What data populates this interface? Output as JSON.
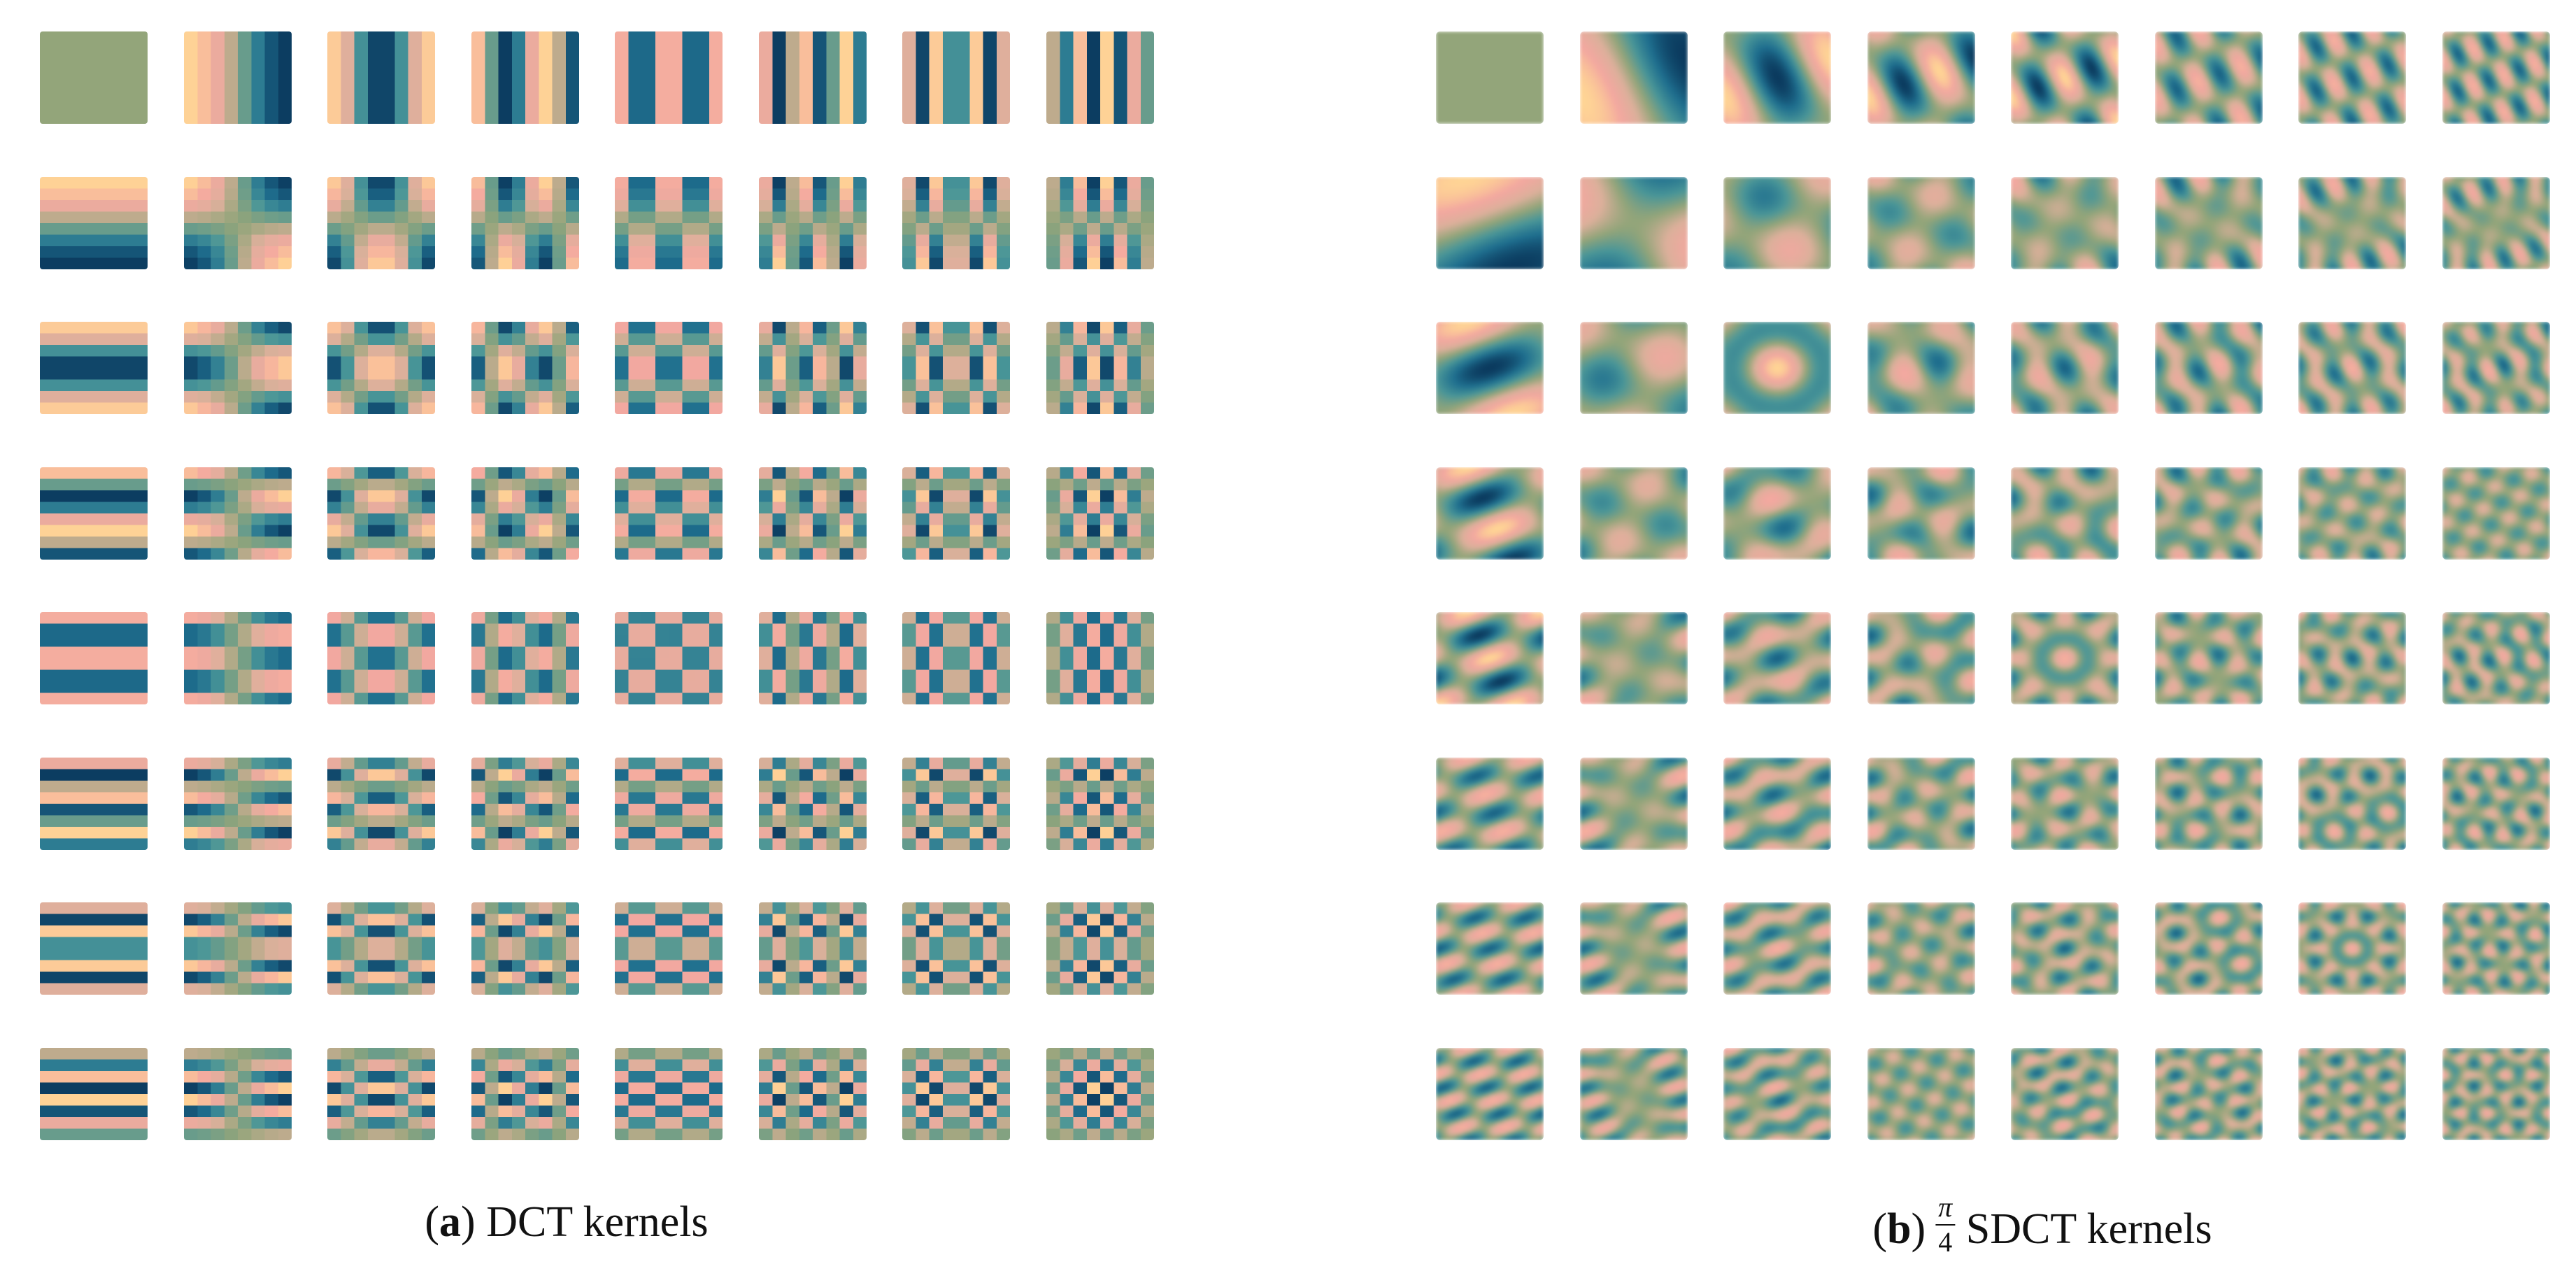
{
  "palette": {
    "neg_strong": "#0b3a5e",
    "neg_mid": "#1f6f8f",
    "neutral_blue": "#4a9698",
    "neutral": "#93a57a",
    "pos_mid": "#f3a8a0",
    "pos_soft": "#dcb09b",
    "pos_strong": "#ffd595"
  },
  "panels": [
    {
      "id": "a",
      "caption_letter": "a",
      "caption_text": " DCT kernels",
      "grid_rows": 8,
      "grid_cols": 8,
      "rotation": 0,
      "smooth": false
    },
    {
      "id": "b",
      "caption_letter": "b",
      "caption_frac_num": "π",
      "caption_frac_den": "4",
      "caption_text": " SDCT kernels",
      "grid_rows": 8,
      "grid_cols": 8,
      "rotation": 0.785398,
      "smooth": true
    }
  ]
}
